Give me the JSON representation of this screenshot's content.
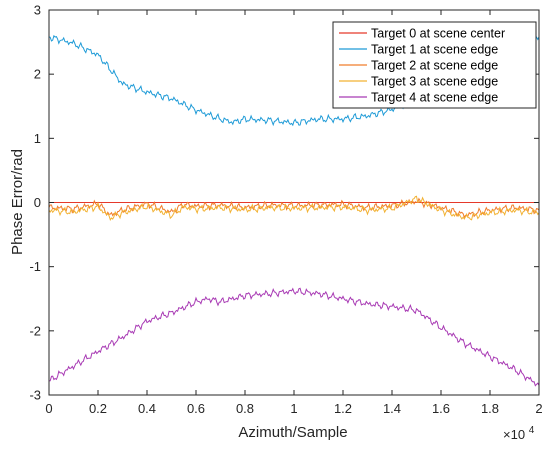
{
  "chart_data": {
    "type": "line",
    "xlabel": "Azimuth/Sample",
    "ylabel": "Phase Error/rad",
    "x_multiplier_label": "×10",
    "x_multiplier_exponent": "4",
    "xlim": [
      0,
      20000
    ],
    "ylim": [
      -3,
      3
    ],
    "x_ticks": [
      0,
      2000,
      4000,
      6000,
      8000,
      10000,
      12000,
      14000,
      16000,
      18000,
      20000
    ],
    "x_tick_labels": [
      "0",
      "0.2",
      "0.4",
      "0.6",
      "0.8",
      "1",
      "1.2",
      "1.4",
      "1.6",
      "1.8",
      "2"
    ],
    "y_ticks": [
      -3,
      -2,
      -1,
      0,
      1,
      2,
      3
    ],
    "y_tick_labels": [
      "-3",
      "-2",
      "-1",
      "0",
      "1",
      "2",
      "3"
    ],
    "grid": false,
    "legend_position": "top-right",
    "series": [
      {
        "name": "Target 0 at scene center",
        "color": "#e5392b",
        "x": [
          0,
          20000
        ],
        "y": [
          0.0,
          0.0
        ]
      },
      {
        "name": "Target 1 at scene edge",
        "color": "#1f9bd7",
        "x": [
          0,
          1000,
          2000,
          3000,
          4000,
          5000,
          6000,
          7000,
          7500,
          8000,
          9000,
          10000,
          11000,
          12000,
          13000,
          14000,
          15000,
          16000,
          17000,
          18000,
          19000,
          20000
        ],
        "y": [
          2.58,
          2.48,
          2.3,
          1.85,
          1.72,
          1.62,
          1.44,
          1.3,
          1.25,
          1.3,
          1.28,
          1.24,
          1.3,
          1.3,
          1.35,
          1.45,
          1.6,
          1.75,
          1.95,
          2.2,
          2.45,
          2.58
        ]
      },
      {
        "name": "Target 2 at scene edge",
        "color": "#f07d2c",
        "x": [
          0,
          1000,
          2000,
          2500,
          3000,
          4000,
          5000,
          5500,
          6000,
          7000,
          8000,
          9000,
          10000,
          11000,
          12000,
          13000,
          14000,
          15000,
          16000,
          17000,
          18000,
          19000,
          20000
        ],
        "y": [
          -0.08,
          -0.1,
          -0.02,
          -0.2,
          -0.12,
          -0.02,
          -0.15,
          -0.03,
          -0.06,
          -0.04,
          -0.08,
          -0.04,
          -0.05,
          -0.04,
          -0.03,
          -0.08,
          -0.05,
          0.02,
          -0.08,
          -0.2,
          -0.12,
          -0.08,
          -0.12
        ]
      },
      {
        "name": "Target 3 at scene edge",
        "color": "#f2b233",
        "x": [
          0,
          1000,
          2000,
          2500,
          3000,
          4000,
          5000,
          5500,
          6000,
          7000,
          8000,
          9000,
          10000,
          11000,
          12000,
          13000,
          14000,
          15000,
          16000,
          17000,
          18000,
          19000,
          20000
        ],
        "y": [
          -0.12,
          -0.15,
          -0.06,
          -0.24,
          -0.16,
          -0.06,
          -0.2,
          -0.07,
          -0.1,
          -0.08,
          -0.11,
          -0.08,
          -0.09,
          -0.08,
          -0.07,
          -0.12,
          -0.09,
          0.06,
          -0.12,
          -0.24,
          -0.16,
          -0.12,
          -0.16
        ]
      },
      {
        "name": "Target 4 at scene edge",
        "color": "#a83ab4",
        "x": [
          0,
          1000,
          2000,
          3000,
          4000,
          5000,
          6000,
          6500,
          7000,
          8000,
          9000,
          10000,
          11000,
          12000,
          13000,
          14000,
          15000,
          16000,
          17000,
          18000,
          19000,
          20000
        ],
        "y": [
          -2.78,
          -2.55,
          -2.32,
          -2.1,
          -1.85,
          -1.72,
          -1.55,
          -1.5,
          -1.55,
          -1.45,
          -1.42,
          -1.38,
          -1.42,
          -1.5,
          -1.58,
          -1.62,
          -1.68,
          -1.95,
          -2.2,
          -2.4,
          -2.6,
          -2.85
        ]
      }
    ]
  }
}
